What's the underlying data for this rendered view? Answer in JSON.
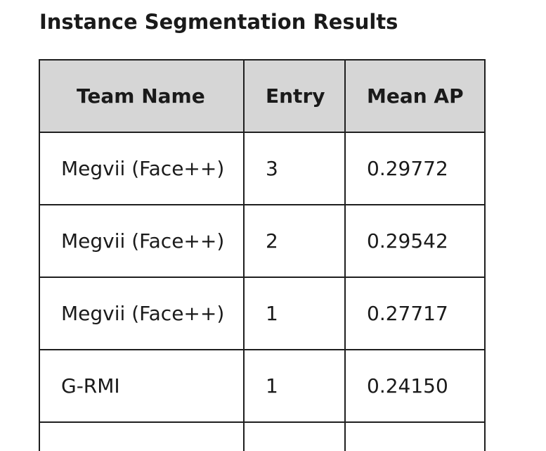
{
  "page": {
    "title": "Instance Segmentation Results"
  },
  "table": {
    "headers": [
      "Team Name",
      "Entry",
      "Mean AP"
    ],
    "rows": [
      [
        "Megvii (Face++)",
        "3",
        "0.29772"
      ],
      [
        "Megvii (Face++)",
        "2",
        "0.29542"
      ],
      [
        "Megvii (Face++)",
        "1",
        "0.27717"
      ],
      [
        "G-RMI",
        "1",
        "0.24150"
      ]
    ]
  }
}
